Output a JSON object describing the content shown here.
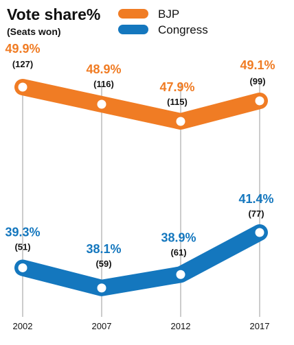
{
  "chart_data": {
    "type": "line",
    "title": "Vote share%",
    "subtitle": "(Seats won)",
    "x": [
      "2002",
      "2007",
      "2012",
      "2017"
    ],
    "series": [
      {
        "name": "BJP",
        "color": "#F07C24",
        "values": [
          49.9,
          48.9,
          47.9,
          49.1
        ],
        "value_labels": [
          "49.9%",
          "48.9%",
          "47.9%",
          "49.1%"
        ],
        "seat_labels": [
          "(127)",
          "(116)",
          "(115)",
          "(99)"
        ]
      },
      {
        "name": "Congress",
        "color": "#1477BE",
        "values": [
          39.3,
          38.1,
          38.9,
          41.4
        ],
        "value_labels": [
          "39.3%",
          "38.1%",
          "38.9%",
          "41.4%"
        ],
        "seat_labels": [
          "(51)",
          "(59)",
          "(61)",
          "(77)"
        ]
      }
    ],
    "grid": "vertical lines at each year",
    "legend": "top-right"
  }
}
